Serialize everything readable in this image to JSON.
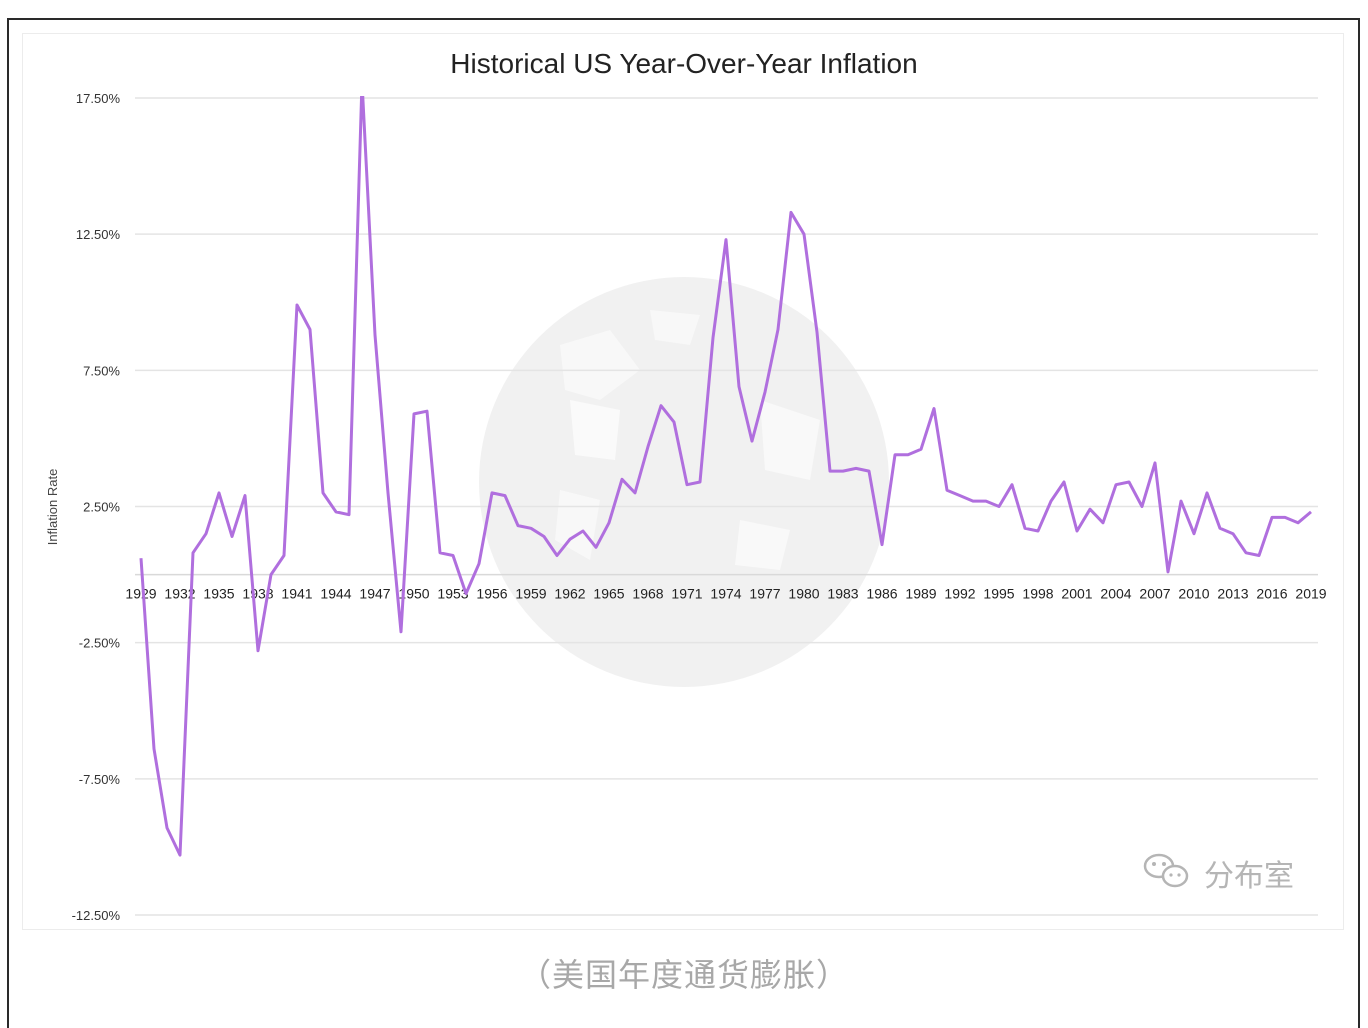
{
  "chart_data": {
    "type": "line",
    "title": "Historical US Year-Over-Year Inflation",
    "ylabel": "Inflation Rate",
    "xlabel": "",
    "ylim": [
      -12.5,
      17.5
    ],
    "y_ticks": [
      "17.50%",
      "12.50%",
      "7.50%",
      "2.50%",
      "-2.50%",
      "-7.50%",
      "-12.50%"
    ],
    "y_tick_values": [
      17.5,
      12.5,
      7.5,
      2.5,
      -2.5,
      -7.5,
      -12.5
    ],
    "x_tick_labels": [
      "1929",
      "1932",
      "1935",
      "1938",
      "1941",
      "1944",
      "1947",
      "1950",
      "1953",
      "1956",
      "1959",
      "1962",
      "1965",
      "1968",
      "1971",
      "1974",
      "1977",
      "1980",
      "1983",
      "1986",
      "1989",
      "1992",
      "1995",
      "1998",
      "2001",
      "2004",
      "2007",
      "2010",
      "2013",
      "2016",
      "2019"
    ],
    "grid": true,
    "line_color": "#b06fde",
    "x": [
      1929,
      1930,
      1931,
      1932,
      1933,
      1934,
      1935,
      1936,
      1937,
      1938,
      1939,
      1940,
      1941,
      1942,
      1943,
      1944,
      1945,
      1946,
      1947,
      1948,
      1949,
      1950,
      1951,
      1952,
      1953,
      1954,
      1955,
      1956,
      1957,
      1958,
      1959,
      1960,
      1961,
      1962,
      1963,
      1964,
      1965,
      1966,
      1967,
      1968,
      1969,
      1970,
      1971,
      1972,
      1973,
      1974,
      1975,
      1976,
      1977,
      1978,
      1979,
      1980,
      1981,
      1982,
      1983,
      1984,
      1985,
      1986,
      1987,
      1988,
      1989,
      1990,
      1991,
      1992,
      1993,
      1994,
      1995,
      1996,
      1997,
      1998,
      1999,
      2000,
      2001,
      2002,
      2003,
      2004,
      2005,
      2006,
      2007,
      2008,
      2009,
      2010,
      2011,
      2012,
      2013,
      2014,
      2015,
      2016,
      2017,
      2018,
      2019
    ],
    "values": [
      0.6,
      -6.4,
      -9.3,
      -10.3,
      0.8,
      1.5,
      3.0,
      1.4,
      2.9,
      -2.8,
      0.0,
      0.7,
      9.9,
      9.0,
      3.0,
      2.3,
      2.2,
      18.1,
      8.8,
      3.0,
      -2.1,
      5.9,
      6.0,
      0.8,
      0.7,
      -0.7,
      0.4,
      3.0,
      2.9,
      1.8,
      1.7,
      1.4,
      0.7,
      1.3,
      1.6,
      1.0,
      1.9,
      3.5,
      3.0,
      4.7,
      6.2,
      5.6,
      3.3,
      3.4,
      8.7,
      12.3,
      6.9,
      4.9,
      6.7,
      9.0,
      13.3,
      12.5,
      8.9,
      3.8,
      3.8,
      3.9,
      3.8,
      1.1,
      4.4,
      4.4,
      4.6,
      6.1,
      3.1,
      2.9,
      2.7,
      2.7,
      2.5,
      3.3,
      1.7,
      1.6,
      2.7,
      3.4,
      1.6,
      2.4,
      1.9,
      3.3,
      3.4,
      2.5,
      4.1,
      0.1,
      2.7,
      1.5,
      3.0,
      1.7,
      1.5,
      0.8,
      0.7,
      2.1,
      2.1,
      1.9,
      2.3
    ]
  },
  "watermark": {
    "brand_text": "分布室",
    "icon": "wechat-icon"
  },
  "caption": "（美国年度通货膨胀）"
}
